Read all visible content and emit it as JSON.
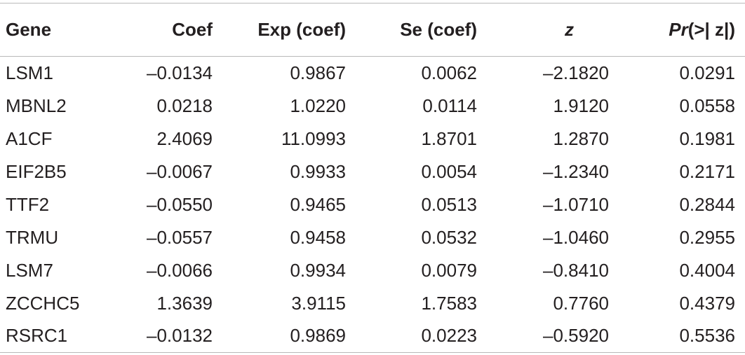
{
  "table": {
    "headers": {
      "gene": "Gene",
      "coef": "Coef",
      "exp_coef": "Exp (coef)",
      "se_coef": "Se (coef)",
      "z": "z",
      "pr_italic": "Pr",
      "pr_rest": "(>| z|)"
    },
    "rows": [
      {
        "gene": "LSM1",
        "coef": "–0.0134",
        "exp_coef": "0.9867",
        "se_coef": "0.0062",
        "z": "–2.1820",
        "pr": "0.0291"
      },
      {
        "gene": "MBNL2",
        "coef": "0.0218",
        "exp_coef": "1.0220",
        "se_coef": "0.0114",
        "z": "1.9120",
        "pr": "0.0558"
      },
      {
        "gene": "A1CF",
        "coef": "2.4069",
        "exp_coef": "11.0993",
        "se_coef": "1.8701",
        "z": "1.2870",
        "pr": "0.1981"
      },
      {
        "gene": "EIF2B5",
        "coef": "–0.0067",
        "exp_coef": "0.9933",
        "se_coef": "0.0054",
        "z": "–1.2340",
        "pr": "0.2171"
      },
      {
        "gene": "TTF2",
        "coef": "–0.0550",
        "exp_coef": "0.9465",
        "se_coef": "0.0513",
        "z": "–1.0710",
        "pr": "0.2844"
      },
      {
        "gene": "TRMU",
        "coef": "–0.0557",
        "exp_coef": "0.9458",
        "se_coef": "0.0532",
        "z": "–1.0460",
        "pr": "0.2955"
      },
      {
        "gene": "LSM7",
        "coef": "–0.0066",
        "exp_coef": "0.9934",
        "se_coef": "0.0079",
        "z": "–0.8410",
        "pr": "0.4004"
      },
      {
        "gene": "ZCCHC5",
        "coef": "1.3639",
        "exp_coef": "3.9115",
        "se_coef": "1.7583",
        "z": "0.7760",
        "pr": "0.4379"
      },
      {
        "gene": "RSRC1",
        "coef": "–0.0132",
        "exp_coef": "0.9869",
        "se_coef": "0.0223",
        "z": "–0.5920",
        "pr": "0.5536"
      }
    ]
  }
}
